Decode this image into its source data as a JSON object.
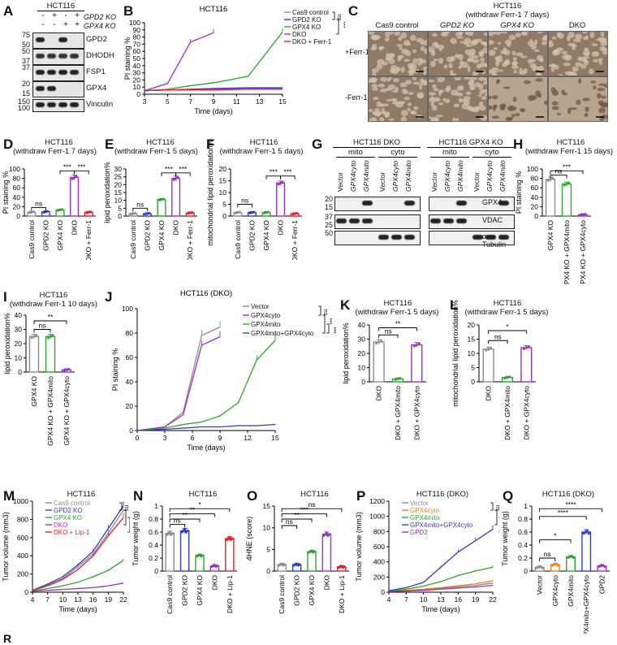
{
  "colors": {
    "gray": "#8c8c8c",
    "blue": "#2f3bd1",
    "green": "#2ea52e",
    "purple": "#9b30c8",
    "red": "#f2162b",
    "orange": "#f07f1f"
  },
  "panelA": {
    "label": "A",
    "cell": "HCT116",
    "cond_labels": [
      "GPD2 KO",
      "GPX4 KO"
    ],
    "cond_marks": [
      [
        "-",
        "+",
        "-",
        "+"
      ],
      [
        "-",
        "-",
        "+",
        "+"
      ]
    ],
    "rows": [
      {
        "name": "GPD2",
        "mw": [
          "75",
          "50"
        ]
      },
      {
        "name": "DHODH",
        "mw": [
          "50",
          "37"
        ]
      },
      {
        "name": "FSP1",
        "mw": [
          "37"
        ]
      },
      {
        "name": "GPX4",
        "mw": [
          "20",
          "15"
        ]
      },
      {
        "name": "Vinculin",
        "mw": [
          "150",
          "100"
        ]
      }
    ]
  },
  "panelB": {
    "label": "B",
    "title": "HCT116",
    "xlabel": "Time (days)",
    "ylabel": "PI staining %",
    "stat_marks": [
      "ns",
      "***"
    ],
    "chart_data": {
      "type": "line",
      "x": [
        3,
        5,
        7,
        9,
        12,
        15
      ],
      "ylim": [
        0,
        100
      ],
      "xticks": [
        3,
        5,
        7,
        9,
        11,
        13,
        15
      ],
      "yticks": [
        0,
        10,
        20,
        30,
        40,
        50,
        60,
        70,
        80,
        90,
        100
      ],
      "series": [
        {
          "name": "Cas9 control",
          "color": "gray",
          "x": [
            3,
            5,
            7,
            9,
            12,
            15
          ],
          "values": [
            5,
            6,
            7,
            7,
            8,
            8
          ]
        },
        {
          "name": "GPD2 KO",
          "color": "blue",
          "x": [
            3,
            5,
            7,
            9,
            12,
            15
          ],
          "values": [
            5,
            6,
            7,
            8,
            9,
            9
          ]
        },
        {
          "name": "GPX4 KO",
          "color": "green",
          "x": [
            3,
            5,
            7,
            9,
            12,
            15
          ],
          "values": [
            5,
            7,
            12,
            16,
            25,
            87
          ]
        },
        {
          "name": "DKO",
          "color": "purple",
          "x": [
            3,
            5,
            7,
            9
          ],
          "values": [
            5,
            15,
            73,
            86
          ]
        },
        {
          "name": "DKO + Ferr-1",
          "color": "red",
          "x": [
            3,
            5,
            7,
            9,
            12,
            15
          ],
          "values": [
            5,
            6,
            6,
            6,
            7,
            7
          ]
        }
      ]
    }
  },
  "panelC": {
    "label": "C",
    "title": "HCT116",
    "subtitle": "(withdraw Ferr-1 7 days)",
    "cols": [
      "Cas9 control",
      "GPD2 KO",
      "GPX4 KO",
      "DKO"
    ],
    "rows": [
      "+Ferr-1",
      "-Ferr-1"
    ]
  },
  "panelD": {
    "label": "D",
    "title": "HCT116",
    "subtitle": "(withdraw Ferr-1 7 days)",
    "ylabel": "PI staining %",
    "stat_marks": [
      "ns",
      "***",
      "***"
    ],
    "chart_data": {
      "type": "bar",
      "categories": [
        "Cas9 control",
        "GPD2 KO",
        "GPX4 KO",
        "DKO",
        "DKO + Ferr-1"
      ],
      "values": [
        8,
        9,
        13,
        82,
        8
      ],
      "colors": [
        "gray",
        "blue",
        "green",
        "purple",
        "red"
      ],
      "ylim": [
        0,
        100
      ],
      "yticks": [
        0,
        20,
        40,
        60,
        80,
        100
      ]
    }
  },
  "panelE": {
    "label": "E",
    "title": "HCT116",
    "subtitle": "(withdraw Ferr-1 5 days)",
    "ylabel": "lipid peroxidation%",
    "stat_marks": [
      "ns",
      "***",
      "***"
    ],
    "chart_data": {
      "type": "bar",
      "categories": [
        "Cas9 control",
        "GPD2 KO",
        "GPX4 KO",
        "DKO",
        "DKO + Ferr-1"
      ],
      "values": [
        1.5,
        1.5,
        10.5,
        24,
        2
      ],
      "colors": [
        "gray",
        "blue",
        "green",
        "purple",
        "red"
      ],
      "ylim": [
        0,
        30
      ],
      "yticks": [
        0,
        5,
        10,
        15,
        20,
        25,
        30
      ]
    }
  },
  "panelF": {
    "label": "F",
    "title": "HCT116",
    "subtitle": "(withdraw Ferr-1 5 days)",
    "ylabel": "mitochondrial lipid peroxidation%",
    "stat_marks": [
      "ns",
      "***",
      "***"
    ],
    "chart_data": {
      "type": "bar",
      "categories": [
        "Cas9 control",
        "GPD2 KO",
        "GPX4 KO",
        "DKO",
        "DKO + Ferr-1"
      ],
      "values": [
        1.5,
        1.5,
        1.5,
        14,
        1
      ],
      "colors": [
        "gray",
        "blue",
        "green",
        "purple",
        "red"
      ],
      "ylim": [
        0,
        20
      ],
      "yticks": [
        0,
        5,
        10,
        15,
        20
      ]
    }
  },
  "panelG": {
    "label": "G",
    "groups": [
      "HCT116 DKO",
      "HCT116 GPX4 KO"
    ],
    "fractions": [
      "mito",
      "cyto"
    ],
    "lanes": [
      "Vector",
      "GPX4cyto",
      "GPX4mito"
    ],
    "rows": [
      {
        "name": "GPX4",
        "mw": [
          "20",
          "15"
        ]
      },
      {
        "name": "VDAC",
        "mw": [
          "37",
          "25"
        ]
      },
      {
        "name": "α-Tubulin",
        "mw": [
          "50"
        ]
      }
    ]
  },
  "panelH": {
    "label": "H",
    "title": "HCT116",
    "subtitle": "(withdraw Ferr-1 15 days)",
    "ylabel": "PI staining %",
    "stat_marks": [
      "ns",
      "***"
    ],
    "chart_data": {
      "type": "bar",
      "categories": [
        "GPX4 KO",
        "GPX4 KO + GPX4mito",
        "GPX4 KO + GPX4cyto"
      ],
      "values": [
        78,
        68,
        3
      ],
      "colors": [
        "gray",
        "green",
        "purple"
      ],
      "ylim": [
        0,
        100
      ],
      "yticks": [
        0,
        20,
        40,
        60,
        80,
        100
      ]
    }
  },
  "panelI": {
    "label": "I",
    "title": "HCT116",
    "subtitle": "(withdraw Ferr-1 10 days)",
    "ylabel": "lipid peroxidation%",
    "stat_marks": [
      "ns",
      "**"
    ],
    "chart_data": {
      "type": "bar",
      "categories": [
        "GPX4 KO",
        "GPX4 KO + GPX4mito",
        "GPX4 KO + GPX4cyto"
      ],
      "values": [
        25,
        25,
        1.5
      ],
      "colors": [
        "gray",
        "green",
        "purple"
      ],
      "ylim": [
        0,
        40
      ],
      "yticks": [
        0,
        10,
        20,
        30,
        40
      ]
    }
  },
  "panelJ": {
    "label": "J",
    "title": "HCT116 (DKO)",
    "xlabel": "Time (days)",
    "ylabel": "PI staining %",
    "stat_marks": [
      "ns",
      "***",
      "***"
    ],
    "chart_data": {
      "type": "line",
      "ylim": [
        0,
        100
      ],
      "xticks": [
        0,
        3,
        6,
        9,
        12,
        15
      ],
      "yticks": [
        0,
        20,
        40,
        60,
        80,
        100
      ],
      "series": [
        {
          "name": "Vector",
          "color": "gray",
          "x": [
            0,
            3,
            5,
            7,
            9
          ],
          "values": [
            0,
            3,
            15,
            78,
            85
          ]
        },
        {
          "name": "GPX4cyto",
          "color": "purple",
          "x": [
            0,
            3,
            5,
            7,
            9
          ],
          "values": [
            0,
            3,
            13,
            70,
            77
          ]
        },
        {
          "name": "GPX4mito",
          "color": "green",
          "x": [
            0,
            3,
            5,
            7,
            9,
            11,
            13,
            15
          ],
          "values": [
            0,
            2,
            5,
            7,
            12,
            23,
            58,
            74
          ]
        },
        {
          "name": "GPX4mito+GPX4cyto",
          "color": "blue",
          "x": [
            0,
            3,
            5,
            7,
            9,
            11,
            13,
            15
          ],
          "values": [
            0,
            1,
            2,
            3,
            3,
            4,
            4,
            5
          ]
        }
      ]
    }
  },
  "panelK": {
    "label": "K",
    "title": "HCT116",
    "subtitle": "(withdraw Ferr-1 5 days)",
    "ylabel": "lipid peroxidation%",
    "stat_marks": [
      "ns",
      "**"
    ],
    "chart_data": {
      "type": "bar",
      "categories": [
        "DKO",
        "DKO + GPX4mito",
        "DKO + GPX4cyto"
      ],
      "values": [
        28,
        2,
        26
      ],
      "colors": [
        "gray",
        "green",
        "purple"
      ],
      "ylim": [
        0,
        40
      ],
      "yticks": [
        0,
        10,
        20,
        30,
        40
      ]
    }
  },
  "panelL": {
    "label": "L",
    "title": "HCT116",
    "subtitle": "(withdraw Ferr-1 5 days)",
    "ylabel": "mitochondrial lipid peroxidation%",
    "stat_marks": [
      "ns",
      "*"
    ],
    "chart_data": {
      "type": "bar",
      "categories": [
        "DKO",
        "DKO + GPX4mito",
        "DKO + GPX4cyto"
      ],
      "values": [
        11.5,
        1.5,
        12
      ],
      "colors": [
        "gray",
        "green",
        "purple"
      ],
      "ylim": [
        0,
        20
      ],
      "yticks": [
        0,
        5,
        10,
        15,
        20
      ]
    }
  },
  "panelM": {
    "label": "M",
    "title": "HCT116",
    "xlabel": "Time (days)",
    "ylabel": "Tumor volume (mm3)",
    "stat_marks": [
      "ns",
      "***",
      "***"
    ],
    "chart_data": {
      "type": "line",
      "ylim": [
        0,
        1000
      ],
      "xticks": [
        4,
        7,
        10,
        13,
        16,
        19,
        22
      ],
      "yticks": [
        0,
        200,
        400,
        600,
        800,
        1000
      ],
      "series": [
        {
          "name": "Cas9 control",
          "color": "gray",
          "x": [
            4,
            7,
            10,
            13,
            16,
            19,
            22
          ],
          "values": [
            20,
            80,
            150,
            280,
            420,
            650,
            900
          ]
        },
        {
          "name": "GPD2 KO",
          "color": "blue",
          "x": [
            4,
            7,
            10,
            13,
            16,
            19,
            22
          ],
          "values": [
            20,
            90,
            170,
            300,
            450,
            700,
            950
          ]
        },
        {
          "name": "GPX4 KO",
          "color": "green",
          "x": [
            4,
            7,
            10,
            13,
            16,
            19,
            22
          ],
          "values": [
            15,
            40,
            70,
            110,
            170,
            240,
            350
          ]
        },
        {
          "name": "DKO",
          "color": "purple",
          "x": [
            4,
            7,
            10,
            13,
            16,
            19,
            22
          ],
          "values": [
            10,
            20,
            30,
            40,
            50,
            70,
            100
          ]
        },
        {
          "name": "DKO + Lip-1",
          "color": "red",
          "x": [
            4,
            7,
            10,
            13,
            16,
            19,
            22
          ],
          "values": [
            20,
            70,
            140,
            250,
            400,
            620,
            820
          ]
        }
      ]
    }
  },
  "panelN": {
    "label": "N",
    "title": "HCT116",
    "ylabel": "Tumor weight (g)",
    "stat_marks": [
      "ns",
      "**",
      "**",
      "*"
    ],
    "chart_data": {
      "type": "bar",
      "categories": [
        "Cas9 control",
        "GPD2 KO",
        "GPX4 KO",
        "DKO",
        "DKO + Lip-1"
      ],
      "values": [
        0.58,
        0.62,
        0.24,
        0.08,
        0.5
      ],
      "colors": [
        "gray",
        "blue",
        "green",
        "purple",
        "red"
      ],
      "ylim": [
        0,
        1.0
      ],
      "yticks": [
        0.0,
        0.2,
        0.4,
        0.6,
        0.8,
        1.0
      ]
    }
  },
  "panelO": {
    "label": "O",
    "title": "HCT116",
    "ylabel": "4HNE (score)",
    "stat_marks": [
      "ns",
      "**",
      "***",
      "ns"
    ],
    "chart_data": {
      "type": "bar",
      "categories": [
        "Cas9 control",
        "GPD2 KO",
        "GPX4 KO",
        "DKO",
        "DKO + Lip-1"
      ],
      "values": [
        1.5,
        1.5,
        4.5,
        8.5,
        1
      ],
      "colors": [
        "gray",
        "blue",
        "green",
        "purple",
        "red"
      ],
      "ylim": [
        0,
        15
      ],
      "yticks": [
        0,
        5,
        10,
        15
      ]
    }
  },
  "panelP": {
    "label": "P",
    "title": "HCT116 (DKO)",
    "xlabel": "Time (days)",
    "ylabel": "Tumor volume (mm3)",
    "stat_marks": [
      "ns",
      "***",
      "***",
      "ns"
    ],
    "chart_data": {
      "type": "line",
      "ylim": [
        0,
        1200
      ],
      "xticks": [
        4,
        7,
        10,
        13,
        16,
        19,
        22
      ],
      "yticks": [
        0,
        200,
        400,
        600,
        800,
        1000,
        1200
      ],
      "series": [
        {
          "name": "Vector",
          "color": "gray",
          "x": [
            4,
            7,
            10,
            13,
            16,
            19,
            22
          ],
          "values": [
            10,
            20,
            35,
            50,
            70,
            90,
            120
          ]
        },
        {
          "name": "GPX4cyto",
          "color": "orange",
          "x": [
            4,
            7,
            10,
            13,
            16,
            19,
            22
          ],
          "values": [
            10,
            25,
            40,
            60,
            85,
            110,
            150
          ]
        },
        {
          "name": "GPX4mito",
          "color": "green",
          "x": [
            4,
            7,
            10,
            13,
            16,
            19,
            22
          ],
          "values": [
            15,
            40,
            80,
            140,
            220,
            280,
            330
          ]
        },
        {
          "name": "GPX4mito+GPX4cyto",
          "color": "blue",
          "x": [
            4,
            7,
            10,
            13,
            16,
            19,
            22
          ],
          "values": [
            20,
            60,
            130,
            330,
            530,
            680,
            830
          ]
        },
        {
          "name": "GPD2",
          "color": "purple",
          "x": [
            4,
            7,
            10,
            13,
            16,
            19,
            22
          ],
          "values": [
            10,
            15,
            25,
            40,
            55,
            70,
            90
          ]
        }
      ]
    }
  },
  "panelQ": {
    "label": "Q",
    "title": "HCT116 (DKO)",
    "ylabel": "Tumor weight (g)",
    "stat_marks": [
      "ns",
      "*",
      "****",
      "****"
    ],
    "chart_data": {
      "type": "bar",
      "categories": [
        "Vector",
        "GPX4cyto",
        "GPX4mito",
        "GPX4mito+GPX4cyto",
        "GPD2"
      ],
      "values": [
        0.06,
        0.1,
        0.22,
        0.6,
        0.08
      ],
      "colors": [
        "gray",
        "orange",
        "green",
        "blue",
        "purple"
      ],
      "ylim": [
        0,
        1.0
      ],
      "yticks": [
        0.0,
        0.2,
        0.4,
        0.6,
        0.8,
        1.0
      ]
    }
  },
  "panelR": {
    "label": "R"
  }
}
